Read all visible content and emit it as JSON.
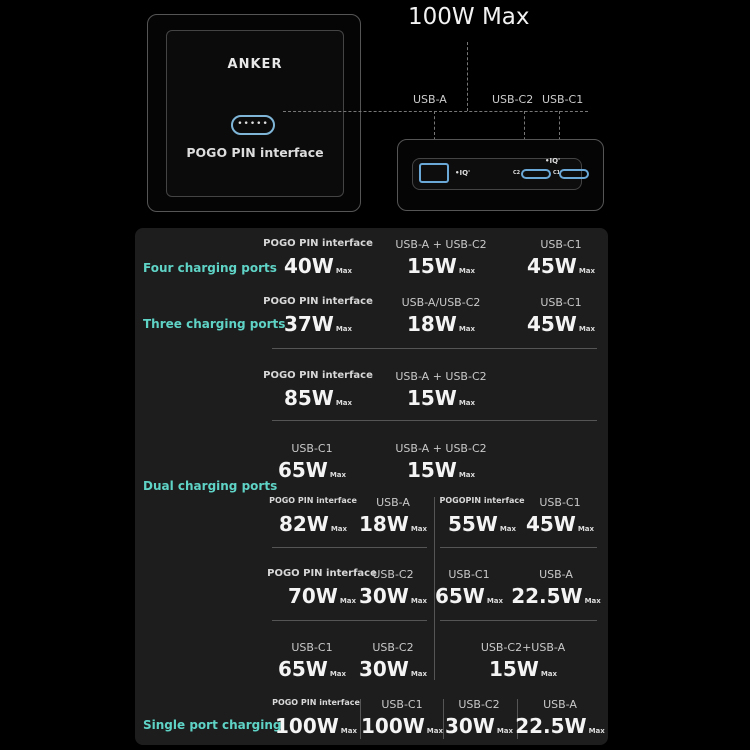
{
  "header": {
    "title": "100W Max"
  },
  "device": {
    "brand": "ANKER",
    "pogo_dots": "•••••",
    "pogo_label": "POGO PIN interface",
    "ports": {
      "usb_a": "USB-A",
      "usb_c2": "USB-C2",
      "usb_c1": "USB-C1"
    },
    "iq_mark": "•IQ'",
    "port_marks": {
      "a": "A",
      "c2": "C2",
      "c1": "C1"
    }
  },
  "max_label": "Max",
  "sections": {
    "four": {
      "label": "Four charging ports",
      "cells": [
        {
          "port": "POGO PIN interface",
          "value": "40W"
        },
        {
          "port": "USB-A + USB-C2",
          "value": "15W"
        },
        {
          "port": "USB-C1",
          "value": "45W"
        }
      ]
    },
    "three": {
      "label": "Three charging ports",
      "cells": [
        {
          "port": "POGO PIN interface",
          "value": "37W"
        },
        {
          "port": "USB-A/USB-C2",
          "value": "18W"
        },
        {
          "port": "USB-C1",
          "value": "45W"
        }
      ]
    },
    "dual": {
      "label": "Dual charging ports",
      "cells": [
        {
          "port": "POGO PIN interface",
          "value": "85W"
        },
        {
          "port": "USB-A + USB-C2",
          "value": "15W"
        },
        {
          "port": "USB-C1",
          "value": "65W"
        },
        {
          "port": "USB-A + USB-C2",
          "value": "15W"
        },
        {
          "port": "POGO PIN interface",
          "value": "82W"
        },
        {
          "port": "USB-A",
          "value": "18W"
        },
        {
          "port": "POGOPIN interface",
          "value": "55W"
        },
        {
          "port": "USB-C1",
          "value": "45W"
        },
        {
          "port": "POGO PIN interface",
          "value": "70W"
        },
        {
          "port": "USB-C2",
          "value": "30W"
        },
        {
          "port": "USB-C1",
          "value": "65W"
        },
        {
          "port": "USB-A",
          "value": "22.5W"
        },
        {
          "port": "USB-C1",
          "value": "65W"
        },
        {
          "port": "USB-C2",
          "value": "30W"
        },
        {
          "port": "USB-C2+USB-A",
          "value": "15W"
        }
      ]
    },
    "single": {
      "label": "Single port charging",
      "cells": [
        {
          "port": "POGO PIN interface",
          "value": "100W"
        },
        {
          "port": "USB-C1",
          "value": "100W"
        },
        {
          "port": "USB-C2",
          "value": "30W"
        },
        {
          "port": "USB-A",
          "value": "22.5W"
        }
      ]
    }
  }
}
